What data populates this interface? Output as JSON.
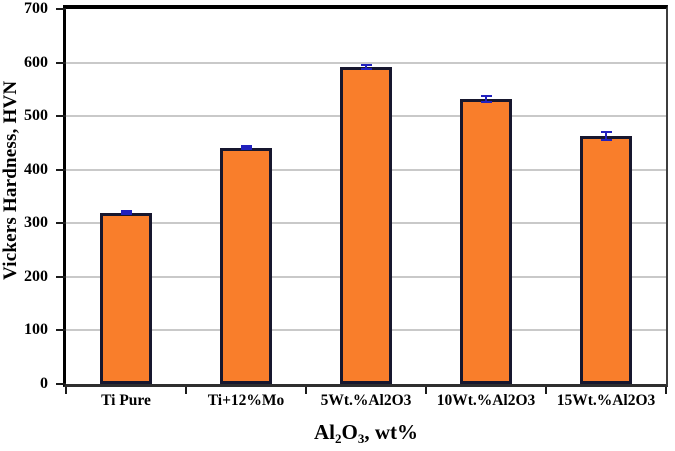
{
  "chart_data": {
    "type": "bar",
    "categories": [
      "Ti Pure",
      "Ti+12%Mo",
      "5Wt.%Al2O3",
      "10Wt.%Al2O3",
      "15Wt.%Al2O3"
    ],
    "values": [
      320,
      441,
      592,
      532,
      463
    ],
    "error_bars": [
      4,
      5,
      6,
      8,
      10
    ],
    "title": "",
    "xlabel": "Al2O3, wt%",
    "ylabel": "Vickers Hardness, HVN",
    "ylim": [
      0,
      700
    ],
    "yticks": [
      0,
      100,
      200,
      300,
      400,
      500,
      600,
      700
    ],
    "grid": "horizontal",
    "legend": "none",
    "bar_color": "#F97E2B",
    "bar_border_color": "#17172E",
    "error_bar_color": "#2121BE",
    "gridline_color": "#C9C9C9",
    "axis_text_color": "#000000"
  },
  "yaxis_title": "Vickers Hardness, HVN",
  "xaxis_title_rich": {
    "seg1": "Al",
    "sub1": "2",
    "seg2": "O",
    "sub2": "3",
    "seg3": ", wt%"
  }
}
